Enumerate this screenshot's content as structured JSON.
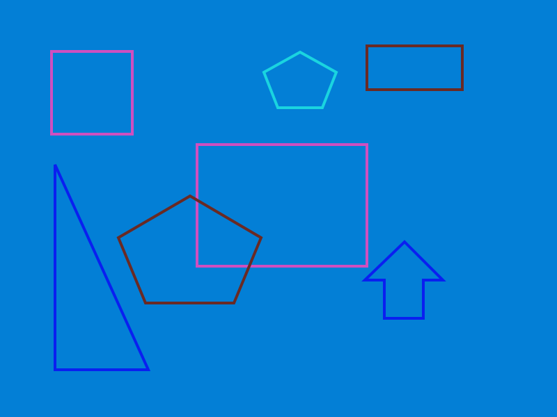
{
  "canvas": {
    "background": "#037fd6"
  },
  "shapes": [
    {
      "name": "square-outline",
      "kind": "square",
      "stroke": "#cf4fc0"
    },
    {
      "name": "small-pentagon-outline",
      "kind": "pentagon",
      "stroke": "#1ad4e0"
    },
    {
      "name": "wide-rectangle-outline",
      "kind": "rectangle",
      "stroke": "#6a2a24"
    },
    {
      "name": "large-rectangle-outline",
      "kind": "rectangle",
      "stroke": "#cf4fc0"
    },
    {
      "name": "right-triangle-outline",
      "kind": "triangle",
      "stroke": "#0a1ff0"
    },
    {
      "name": "large-pentagon-outline",
      "kind": "pentagon",
      "stroke": "#6a2a24"
    },
    {
      "name": "up-arrow-outline",
      "kind": "arrow",
      "stroke": "#0a1ff0"
    }
  ]
}
